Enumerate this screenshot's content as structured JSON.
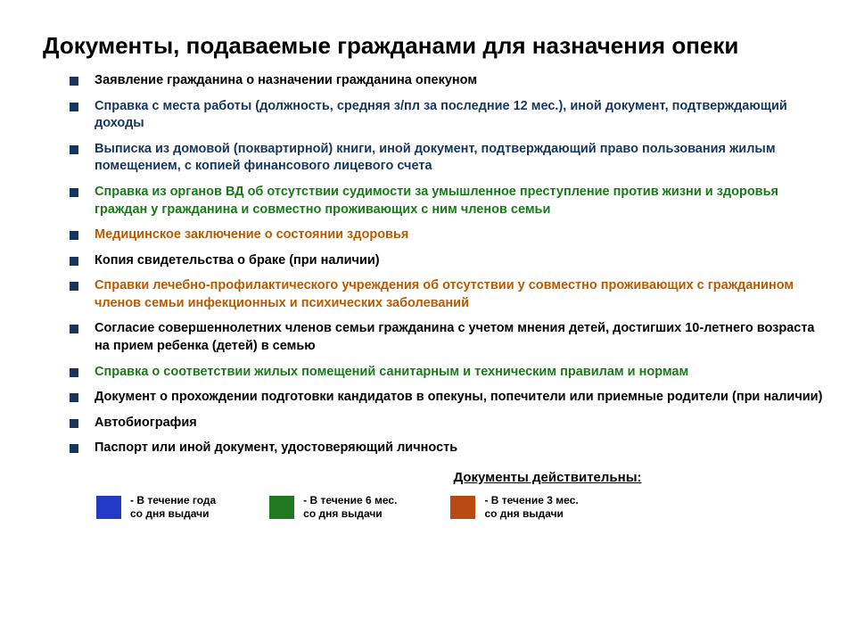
{
  "colors": {
    "black": "#000000",
    "blue": "#17365d",
    "green": "#1a7a1a",
    "orange": "#b85a00",
    "swatch_blue": "#2439c4",
    "swatch_green": "#1f7a1f",
    "swatch_orange": "#b94a12"
  },
  "title": "Документы, подаваемые гражданами для назначения опеки",
  "bullets": [
    {
      "text": "Заявление гражданина о назначении гражданина опекуном",
      "color": "black"
    },
    {
      "text": "Справка с места работы (должность, средняя з/пл за последние 12 мес.), иной документ, подтверждающий доходы",
      "color": "blue"
    },
    {
      "text": "Выписка из домовой (поквартирной) книги, иной документ, подтверждающий право пользования жилым помещением, с копией финансового лицевого счета",
      "color": "blue"
    },
    {
      "text": "Справка из органов ВД об отсутствии судимости за умышленное преступление против жизни и здоровья граждан у гражданина и совместно проживающих с ним членов семьи",
      "color": "green"
    },
    {
      "text": "Медицинское заключение о состоянии здоровья",
      "color": "orange"
    },
    {
      "text": "Копия свидетельства о браке (при наличии)",
      "color": "black"
    },
    {
      "text": "Справки лечебно-профилактического учреждения об отсутствии у совместно проживающих с гражданином членов семьи инфекционных и психических заболеваний",
      "color": "orange"
    },
    {
      "text": "Согласие совершеннолетних членов семьи гражданина с учетом мнения детей, достигших 10-летнего возраста на прием ребенка (детей) в семью",
      "color": "black"
    },
    {
      "text": "Справка о соответствии жилых помещений санитарным и техническим правилам и нормам",
      "color": "green"
    },
    {
      "text": "Документ о прохождении подготовки кандидатов в опекуны, попечители или приемные родители (при наличии)",
      "color": "black"
    },
    {
      "text": "Автобиография",
      "color": "black"
    },
    {
      "text": "Паспорт или иной документ, удостоверяющий личность",
      "color": "black"
    }
  ],
  "legend": {
    "title": "Документы действительны:",
    "items": [
      {
        "swatch": "swatch_blue",
        "text": "- В течение года\n  со дня выдачи"
      },
      {
        "swatch": "swatch_green",
        "text": "- В течение 6 мес.\n  со дня выдачи"
      },
      {
        "swatch": "swatch_orange",
        "text": "- В течение 3 мес.\n  со дня выдачи"
      }
    ]
  }
}
